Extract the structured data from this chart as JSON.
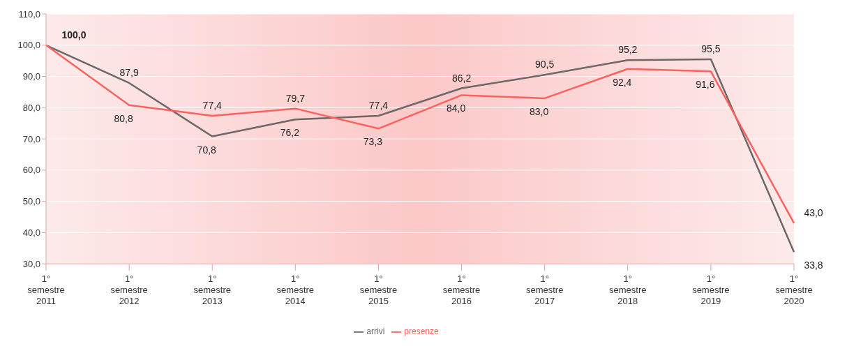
{
  "chart_data": {
    "type": "line",
    "categories": [
      "1° semestre 2011",
      "1° semestre 2012",
      "1° semestre 2013",
      "1° semestre 2014",
      "1° semestre 2015",
      "1° semestre 2016",
      "1° semestre 2017",
      "1° semestre 2018",
      "1° semestre 2019",
      "1° semestre 2020"
    ],
    "series": [
      {
        "name": "arrivi",
        "color": "#6e6767",
        "values": [
          100.0,
          87.9,
          70.8,
          76.2,
          77.4,
          86.2,
          90.5,
          95.2,
          95.5,
          33.8
        ],
        "value_labels": [
          "100,0",
          "87,9",
          "70,8",
          "76,2",
          "77,4",
          "86,2",
          "90,5",
          "95,2",
          "95,5",
          "33,8"
        ]
      },
      {
        "name": "presenze",
        "color": "#ff615f",
        "values": [
          100.0,
          80.8,
          77.4,
          79.7,
          73.3,
          84.0,
          83.0,
          92.4,
          91.6,
          43.0
        ],
        "value_labels": [
          null,
          "80,8",
          "77,4",
          "79,7",
          "73,3",
          "84,0",
          "83,0",
          "92,4",
          "91,6",
          "43,0"
        ]
      }
    ],
    "ylim": [
      30,
      110
    ],
    "yticks": [
      {
        "value": 30,
        "label": "30,0"
      },
      {
        "value": 40,
        "label": "40,0"
      },
      {
        "value": 50,
        "label": "50,0"
      },
      {
        "value": 60,
        "label": "60,0"
      },
      {
        "value": 70,
        "label": "70,0"
      },
      {
        "value": 80,
        "label": "80,0"
      },
      {
        "value": 90,
        "label": "90,0"
      },
      {
        "value": 100,
        "label": "100,0"
      },
      {
        "value": 110,
        "label": "110,0"
      }
    ],
    "grid": "y",
    "legend": "bottom",
    "marker": "none",
    "line_style": "solid"
  }
}
